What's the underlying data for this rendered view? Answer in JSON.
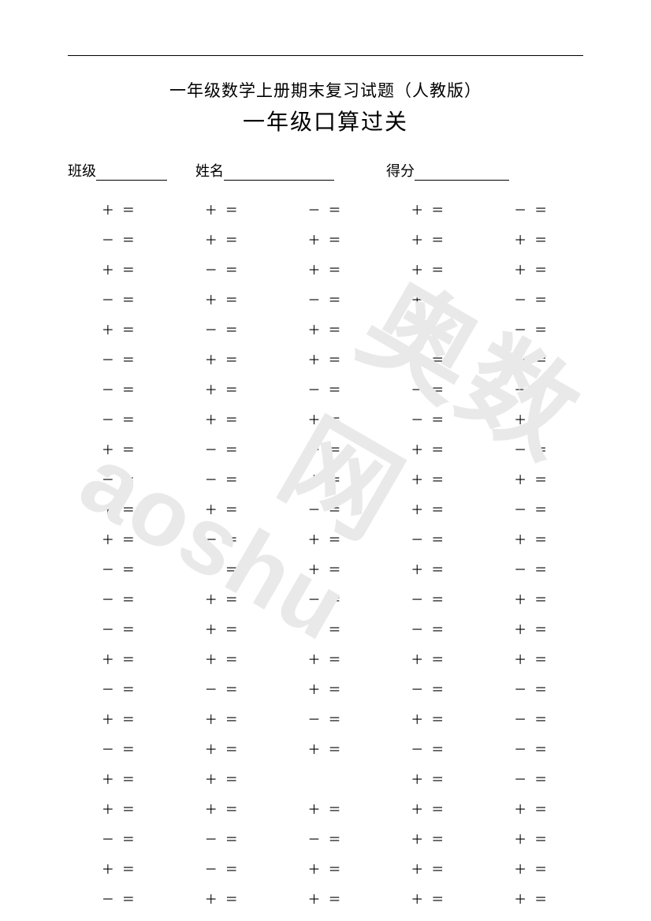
{
  "page": {
    "bg_color": "#ffffff",
    "text_color": "#000000",
    "watermark_color": "#e9e9e9"
  },
  "header": {
    "subtitle": "一年级数学上册期末复习试题（人教版）",
    "title": "一年级口算过关"
  },
  "info": {
    "class_label": "班级",
    "name_label": "姓名",
    "score_label": "得分"
  },
  "watermark": {
    "cn": "奥数网",
    "en": "aoshu"
  },
  "grid": {
    "type": "table",
    "columns": 5,
    "rows_count": 24,
    "font_size": 16,
    "row_gap": 14,
    "cells": [
      [
        "＋ ＝",
        "＋ ＝",
        "－ ＝",
        "＋ ＝",
        "－ ＝"
      ],
      [
        "－ ＝",
        "＋ ＝",
        "＋ ＝",
        "＋ ＝",
        "＋ ＝"
      ],
      [
        "＋ ＝",
        "－ ＝",
        "＋ ＝",
        "＋ ＝",
        "＋ ＝"
      ],
      [
        "－ ＝",
        "＋ ＝",
        "－ ＝",
        "＋ ＝",
        "－ ＝"
      ],
      [
        "＋ ＝",
        "－ ＝",
        "＋ ＝",
        "－ ＝",
        "－ ＝"
      ],
      [
        "－ ＝",
        "＋ ＝",
        "＋ ＝",
        "＋ ＝",
        "－ ＝"
      ],
      [
        "－ ＝",
        "＋ ＝",
        "－ ＝",
        "－ ＝",
        "－ ＝"
      ],
      [
        "－ ＝",
        "＋ ＝",
        "＋ ＝",
        "－ ＝",
        "＋ ＝"
      ],
      [
        "＋ ＝",
        "－ ＝",
        "＋ ＝",
        "＋ ＝",
        "－ ＝"
      ],
      [
        "－ ＝",
        "－ ＝",
        "＋ ＝",
        "＋ ＝",
        "＋ ＝"
      ],
      [
        "＋ ＝",
        "＋ ＝",
        "－ ＝",
        "＋ ＝",
        "－ ＝"
      ],
      [
        "＋ ＝",
        "－ ＝",
        "＋ ＝",
        "－ ＝",
        "＋ ＝"
      ],
      [
        "－ ＝",
        "＋ ＝",
        "＋ ＝",
        "＋ ＝",
        "－ ＝"
      ],
      [
        "－ ＝",
        "＋ ＝",
        "－ ＝",
        "－ ＝",
        "＋ ＝"
      ],
      [
        "－ ＝",
        "＋ ＝",
        "＋ ＝",
        "－ ＝",
        "＋ ＝"
      ],
      [
        "＋ ＝",
        "＋ ＝",
        "＋ ＝",
        "＋ ＝",
        "＋ ＝"
      ],
      [
        "－ ＝",
        "－ ＝",
        "＋ ＝",
        "－ ＝",
        "－ ＝"
      ],
      [
        "＋ ＝",
        "＋ ＝",
        "－ ＝",
        "＋ ＝",
        "－ ＝"
      ],
      [
        "－ ＝",
        "＋ ＝",
        "＋ ＝",
        "－ ＝",
        "－ ＝"
      ],
      [
        "＋ ＝",
        "＋ ＝",
        "",
        "＋ ＝",
        "－ ＝"
      ],
      [
        "＋ ＝",
        "＋ ＝",
        "＋ ＝",
        "＋ ＝",
        "＋ ＝"
      ],
      [
        "－ ＝",
        "－ ＝",
        "－ ＝",
        "＋ ＝",
        "＋ ＝"
      ],
      [
        "＋ ＝",
        "－ ＝",
        "＋ ＝",
        "＋ ＝",
        "＋ ＝"
      ],
      [
        "－ ＝",
        "＋ ＝",
        "＋ ＝",
        "＋ ＝",
        "＋ ＝"
      ]
    ]
  }
}
